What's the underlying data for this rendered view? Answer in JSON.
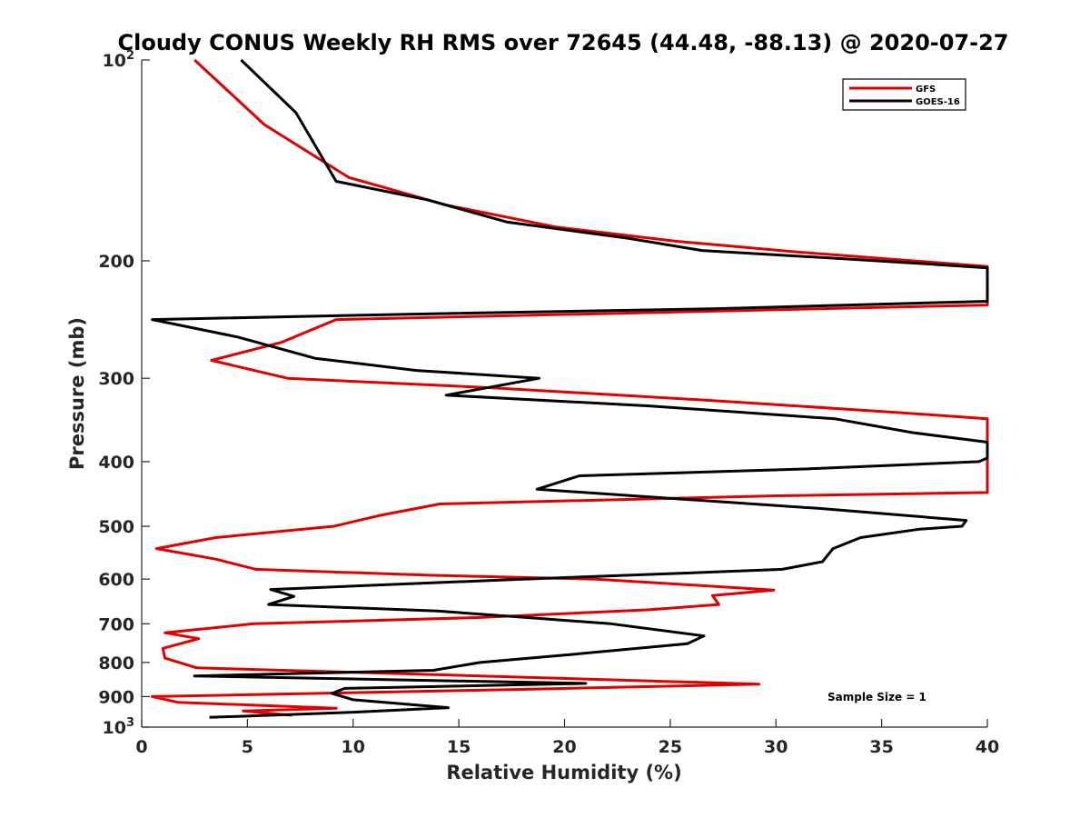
{
  "chart_data": {
    "type": "line",
    "title": "Cloudy CONUS Weekly RH RMS over 72645 (44.48, -88.13) @ 2020-07-27",
    "xlabel": "Relative Humidity (%)",
    "ylabel": "Pressure (mb)",
    "xlim": [
      0,
      40
    ],
    "ylim": [
      100,
      1000
    ],
    "y_scale": "log",
    "y_reversed": true,
    "grid": false,
    "legend_position": "top-right",
    "x_ticks": [
      "0",
      "5",
      "10",
      "15",
      "20",
      "25",
      "30",
      "35",
      "40"
    ],
    "y_ticks": [
      {
        "value": 100,
        "base": "10",
        "exp": "2"
      },
      {
        "value": 200,
        "label": "200"
      },
      {
        "value": 300,
        "label": "300"
      },
      {
        "value": 400,
        "label": "400"
      },
      {
        "value": 500,
        "label": "500"
      },
      {
        "value": 600,
        "label": "600"
      },
      {
        "value": 700,
        "label": "700"
      },
      {
        "value": 800,
        "label": "800"
      },
      {
        "value": 900,
        "label": "900"
      },
      {
        "value": 1000,
        "base": "10",
        "exp": "3"
      }
    ],
    "series": [
      {
        "name": "GFS",
        "color": "#e00000",
        "points": [
          [
            2.5,
            100
          ],
          [
            5.8,
            125
          ],
          [
            9.8,
            150
          ],
          [
            14.4,
            165
          ],
          [
            19.6,
            178
          ],
          [
            25.3,
            187
          ],
          [
            31.0,
            194
          ],
          [
            36.5,
            200
          ],
          [
            40.0,
            204
          ],
          [
            40.0,
            233
          ],
          [
            9.2,
            245
          ],
          [
            6.6,
            265
          ],
          [
            3.3,
            282
          ],
          [
            6.9,
            300
          ],
          [
            16.6,
            310
          ],
          [
            27.0,
            324
          ],
          [
            36.0,
            338
          ],
          [
            40.0,
            345
          ],
          [
            40.0,
            445
          ],
          [
            30.0,
            450
          ],
          [
            14.1,
            463
          ],
          [
            11.2,
            482
          ],
          [
            9.1,
            500
          ],
          [
            3.5,
            520
          ],
          [
            0.7,
            540
          ],
          [
            3.5,
            560
          ],
          [
            5.4,
            580
          ],
          [
            13.6,
            592
          ],
          [
            21.5,
            600
          ],
          [
            29.9,
            623
          ],
          [
            27.0,
            635
          ],
          [
            27.3,
            655
          ],
          [
            24.0,
            667
          ],
          [
            16.0,
            685
          ],
          [
            5.3,
            700
          ],
          [
            1.1,
            722
          ],
          [
            2.7,
            737
          ],
          [
            1.0,
            762
          ],
          [
            1.1,
            788
          ],
          [
            2.6,
            815
          ],
          [
            16.0,
            838
          ],
          [
            29.2,
            862
          ],
          [
            18.0,
            878
          ],
          [
            0.5,
            900
          ],
          [
            1.7,
            918
          ],
          [
            9.2,
            937
          ],
          [
            4.8,
            946
          ],
          [
            7.1,
            960
          ]
        ]
      },
      {
        "name": "GOES-16",
        "color": "#000000",
        "points": [
          [
            4.7,
            100
          ],
          [
            7.3,
            120
          ],
          [
            9.2,
            152
          ],
          [
            13.5,
            162
          ],
          [
            17.3,
            175
          ],
          [
            23.0,
            185
          ],
          [
            26.5,
            193
          ],
          [
            32.5,
            198
          ],
          [
            37.0,
            202
          ],
          [
            40.0,
            205
          ],
          [
            40.0,
            230
          ],
          [
            27.0,
            236
          ],
          [
            14.0,
            240
          ],
          [
            0.5,
            245
          ],
          [
            4.5,
            260
          ],
          [
            8.2,
            280
          ],
          [
            13.0,
            292
          ],
          [
            18.8,
            300
          ],
          [
            14.4,
            318
          ],
          [
            24.0,
            330
          ],
          [
            32.8,
            345
          ],
          [
            36.5,
            362
          ],
          [
            40.0,
            374
          ],
          [
            40.0,
            395
          ],
          [
            39.6,
            400
          ],
          [
            31.6,
            410
          ],
          [
            20.7,
            420
          ],
          [
            18.7,
            440
          ],
          [
            32.0,
            470
          ],
          [
            39.0,
            490
          ],
          [
            38.8,
            500
          ],
          [
            36.8,
            505
          ],
          [
            34.0,
            520
          ],
          [
            32.7,
            540
          ],
          [
            32.2,
            565
          ],
          [
            30.3,
            580
          ],
          [
            24.3,
            590
          ],
          [
            18.0,
            600
          ],
          [
            6.1,
            622
          ],
          [
            7.2,
            637
          ],
          [
            6.0,
            655
          ],
          [
            14.0,
            670
          ],
          [
            19.0,
            688
          ],
          [
            22.2,
            700
          ],
          [
            26.6,
            730
          ],
          [
            25.8,
            750
          ],
          [
            20.0,
            780
          ],
          [
            16.0,
            800
          ],
          [
            13.8,
            822
          ],
          [
            2.5,
            838
          ],
          [
            21.0,
            860
          ],
          [
            9.6,
            875
          ],
          [
            9.0,
            890
          ],
          [
            10.0,
            910
          ],
          [
            14.5,
            935
          ],
          [
            10.0,
            950
          ],
          [
            3.2,
            967
          ]
        ]
      }
    ],
    "annotations": [
      "Sample Size = 1"
    ]
  }
}
